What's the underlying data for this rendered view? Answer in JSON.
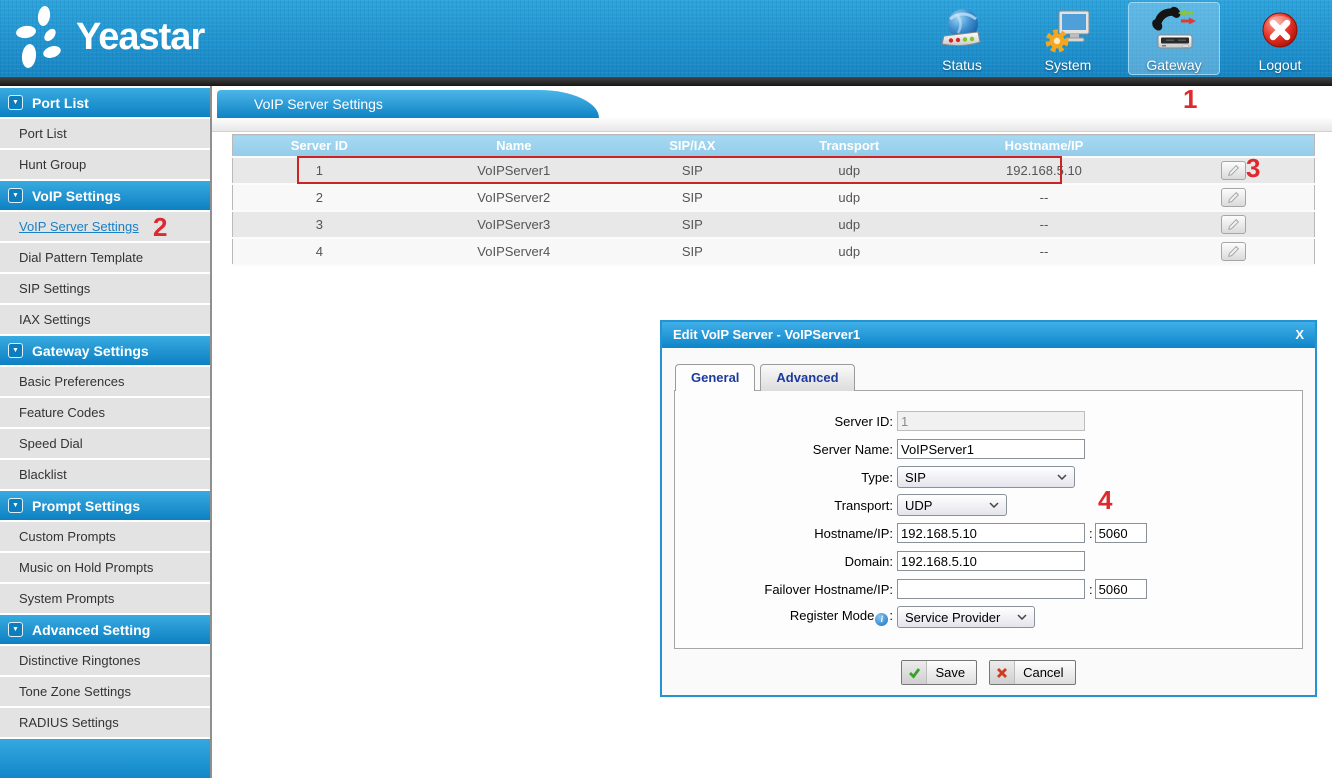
{
  "brand": {
    "logo_text": "Yeastar"
  },
  "nav": {
    "items": [
      {
        "label": "Status"
      },
      {
        "label": "System"
      },
      {
        "label": "Gateway",
        "active": true
      },
      {
        "label": "Logout"
      }
    ]
  },
  "sidebar": {
    "sections": [
      {
        "title": "Port List",
        "items": [
          {
            "label": "Port List"
          },
          {
            "label": "Hunt Group"
          }
        ]
      },
      {
        "title": "VoIP Settings",
        "items": [
          {
            "label": "VoIP Server Settings",
            "active": true
          },
          {
            "label": "Dial Pattern Template"
          },
          {
            "label": "SIP Settings"
          },
          {
            "label": "IAX Settings"
          }
        ]
      },
      {
        "title": "Gateway Settings",
        "items": [
          {
            "label": "Basic Preferences"
          },
          {
            "label": "Feature Codes"
          },
          {
            "label": "Speed Dial"
          },
          {
            "label": "Blacklist"
          }
        ]
      },
      {
        "title": "Prompt Settings",
        "items": [
          {
            "label": "Custom Prompts"
          },
          {
            "label": "Music on Hold Prompts"
          },
          {
            "label": "System Prompts"
          }
        ]
      },
      {
        "title": "Advanced Setting",
        "items": [
          {
            "label": "Distinctive Ringtones"
          },
          {
            "label": "Tone Zone Settings"
          },
          {
            "label": "RADIUS Settings"
          }
        ]
      }
    ]
  },
  "page": {
    "tab_title": "VoIP Server Settings"
  },
  "table": {
    "columns": [
      "Server ID",
      "Name",
      "SIP/IAX",
      "Transport",
      "Hostname/IP",
      ""
    ],
    "rows": [
      {
        "server_id": "1",
        "name": "VoIPServer1",
        "sip_iax": "SIP",
        "transport": "udp",
        "hostname": "192.168.5.10",
        "highlighted": true
      },
      {
        "server_id": "2",
        "name": "VoIPServer2",
        "sip_iax": "SIP",
        "transport": "udp",
        "hostname": "--"
      },
      {
        "server_id": "3",
        "name": "VoIPServer3",
        "sip_iax": "SIP",
        "transport": "udp",
        "hostname": "--"
      },
      {
        "server_id": "4",
        "name": "VoIPServer4",
        "sip_iax": "SIP",
        "transport": "udp",
        "hostname": "--"
      }
    ]
  },
  "dialog": {
    "title": "Edit VoIP Server - VoIPServer1",
    "close_label": "X",
    "tabs": [
      {
        "label": "General",
        "active": true
      },
      {
        "label": "Advanced"
      }
    ],
    "fields": {
      "server_id": {
        "label": "Server ID:",
        "value": "1"
      },
      "server_name": {
        "label": "Server Name:",
        "value": "VoIPServer1"
      },
      "type": {
        "label": "Type:",
        "value": "SIP"
      },
      "transport": {
        "label": "Transport:",
        "value": "UDP"
      },
      "hostname": {
        "label": "Hostname/IP:",
        "value": "192.168.5.10",
        "separator": ":",
        "port": "5060"
      },
      "domain": {
        "label": "Domain:",
        "value": "192.168.5.10"
      },
      "failover": {
        "label": "Failover Hostname/IP:",
        "value": "",
        "separator": ":",
        "port": "5060"
      },
      "register_mode": {
        "label": "Register Mode",
        "colon": ":",
        "value": "Service Provider"
      }
    },
    "buttons": {
      "save": "Save",
      "cancel": "Cancel"
    }
  },
  "annotations": {
    "n1": "1",
    "n2": "2",
    "n3": "3",
    "n4": "4"
  },
  "colors": {
    "accent": "#1e96d3",
    "annotation": "#dd2a2e",
    "table_header": "#9dd3ef"
  }
}
